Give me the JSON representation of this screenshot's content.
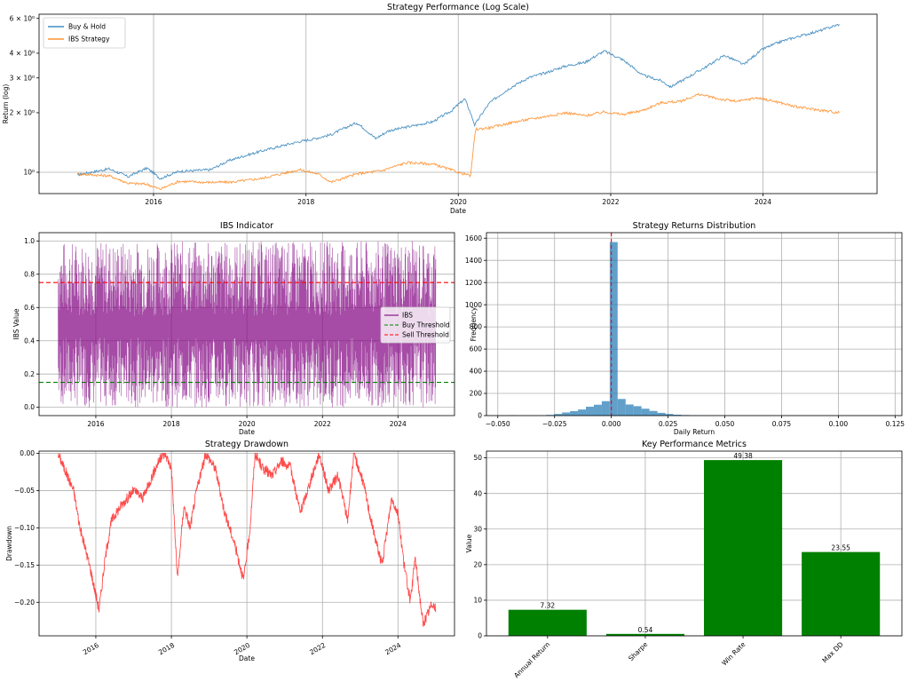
{
  "chart_data": [
    {
      "id": "perf",
      "type": "line",
      "title": "Strategy Performance (Log Scale)",
      "xlabel": "Date",
      "ylabel": "Return (log)",
      "yscale": "log",
      "xlim": [
        "2014-07-01",
        "2025-07-01"
      ],
      "ylim": [
        0.78,
        6.3
      ],
      "xticks": [
        "2016-01-01",
        "2018-01-01",
        "2020-01-01",
        "2022-01-01",
        "2024-01-01"
      ],
      "xtick_labels": [
        "2016",
        "2018",
        "2020",
        "2022",
        "2024"
      ],
      "yticks": [
        1,
        2,
        3,
        4,
        6
      ],
      "ytick_labels": [
        "10⁰",
        "2 × 10⁰",
        "3 × 10⁰",
        "4 × 10⁰",
        "6 × 10⁰"
      ],
      "grid": true,
      "legend": "upper left",
      "series": [
        {
          "name": "Buy & Hold",
          "color": "#1f77b4",
          "points": [
            [
              "2015-01-01",
              0.97
            ],
            [
              "2015-06-01",
              1.04
            ],
            [
              "2015-09-01",
              0.95
            ],
            [
              "2015-12-01",
              1.05
            ],
            [
              "2016-02-01",
              0.93
            ],
            [
              "2016-05-01",
              1.01
            ],
            [
              "2016-10-01",
              1.03
            ],
            [
              "2017-01-01",
              1.15
            ],
            [
              "2017-06-01",
              1.28
            ],
            [
              "2017-12-01",
              1.43
            ],
            [
              "2018-02-01",
              1.47
            ],
            [
              "2018-05-01",
              1.55
            ],
            [
              "2018-09-01",
              1.78
            ],
            [
              "2018-12-01",
              1.48
            ],
            [
              "2019-02-01",
              1.62
            ],
            [
              "2019-06-01",
              1.72
            ],
            [
              "2019-09-01",
              1.8
            ],
            [
              "2019-12-01",
              2.05
            ],
            [
              "2020-02-01",
              2.35
            ],
            [
              "2020-03-20",
              1.73
            ],
            [
              "2020-06-01",
              2.25
            ],
            [
              "2020-09-01",
              2.65
            ],
            [
              "2020-12-01",
              3.0
            ],
            [
              "2021-03-01",
              3.2
            ],
            [
              "2021-06-01",
              3.45
            ],
            [
              "2021-09-01",
              3.6
            ],
            [
              "2021-12-01",
              4.1
            ],
            [
              "2022-03-01",
              3.7
            ],
            [
              "2022-06-01",
              3.1
            ],
            [
              "2022-09-01",
              2.9
            ],
            [
              "2022-10-15",
              2.7
            ],
            [
              "2023-01-01",
              3.0
            ],
            [
              "2023-04-01",
              3.4
            ],
            [
              "2023-07-01",
              3.9
            ],
            [
              "2023-10-01",
              3.5
            ],
            [
              "2024-01-01",
              4.2
            ],
            [
              "2024-04-01",
              4.6
            ],
            [
              "2024-07-01",
              4.9
            ],
            [
              "2024-10-01",
              5.2
            ],
            [
              "2025-01-01",
              5.6
            ]
          ]
        },
        {
          "name": "IBS Strategy",
          "color": "#ff7f0e",
          "points": [
            [
              "2015-01-01",
              0.98
            ],
            [
              "2015-06-01",
              0.96
            ],
            [
              "2015-09-01",
              0.88
            ],
            [
              "2015-12-01",
              0.87
            ],
            [
              "2016-02-01",
              0.82
            ],
            [
              "2016-05-01",
              0.9
            ],
            [
              "2016-09-01",
              0.89
            ],
            [
              "2017-01-01",
              0.89
            ],
            [
              "2017-06-01",
              0.93
            ],
            [
              "2017-12-01",
              1.03
            ],
            [
              "2018-03-01",
              0.98
            ],
            [
              "2018-05-01",
              0.89
            ],
            [
              "2018-09-01",
              0.98
            ],
            [
              "2019-01-01",
              1.02
            ],
            [
              "2019-05-01",
              1.12
            ],
            [
              "2019-09-01",
              1.1
            ],
            [
              "2020-01-01",
              1.0
            ],
            [
              "2020-03-01",
              0.96
            ],
            [
              "2020-03-25",
              1.65
            ],
            [
              "2020-06-01",
              1.68
            ],
            [
              "2020-10-01",
              1.8
            ],
            [
              "2021-03-01",
              1.92
            ],
            [
              "2021-06-01",
              2.0
            ],
            [
              "2021-09-01",
              1.93
            ],
            [
              "2021-12-01",
              2.02
            ],
            [
              "2022-03-01",
              1.96
            ],
            [
              "2022-06-01",
              2.05
            ],
            [
              "2022-09-01",
              2.25
            ],
            [
              "2022-12-01",
              2.28
            ],
            [
              "2023-03-01",
              2.48
            ],
            [
              "2023-06-01",
              2.35
            ],
            [
              "2023-09-01",
              2.28
            ],
            [
              "2023-12-01",
              2.38
            ],
            [
              "2024-03-01",
              2.28
            ],
            [
              "2024-06-01",
              2.15
            ],
            [
              "2024-09-01",
              2.08
            ],
            [
              "2025-01-01",
              2.0
            ]
          ]
        }
      ]
    },
    {
      "id": "ibs",
      "type": "line",
      "title": "IBS Indicator",
      "xlabel": "Date",
      "ylabel": "IBS Value",
      "xlim": [
        "2014-07-01",
        "2025-07-01"
      ],
      "ylim": [
        -0.05,
        1.05
      ],
      "xticks": [
        "2016-01-01",
        "2018-01-01",
        "2020-01-01",
        "2022-01-01",
        "2024-01-01"
      ],
      "xtick_labels": [
        "2016",
        "2018",
        "2020",
        "2022",
        "2024"
      ],
      "yticks": [
        0.0,
        0.2,
        0.4,
        0.6,
        0.8,
        1.0
      ],
      "ytick_labels": [
        "0.0",
        "0.2",
        "0.4",
        "0.6",
        "0.8",
        "1.0"
      ],
      "grid": true,
      "legend": "center right",
      "ibs_range": [
        "2015-01-01",
        "2025-01-01"
      ],
      "series": [
        {
          "name": "IBS",
          "color": "#800080"
        },
        {
          "name": "Buy Threshold",
          "color": "#008000",
          "value": 0.15
        },
        {
          "name": "Sell Threshold",
          "color": "#ff0000",
          "value": 0.75
        }
      ]
    },
    {
      "id": "dist",
      "type": "bar",
      "title": "Strategy Returns Distribution",
      "xlabel": "Daily Return",
      "ylabel": "Frequency",
      "xlim": [
        -0.055,
        0.128
      ],
      "ylim": [
        0,
        1650
      ],
      "xticks": [
        -0.05,
        -0.025,
        0.0,
        0.025,
        0.05,
        0.075,
        0.1,
        0.125
      ],
      "xtick_labels": [
        "−0.050",
        "−0.025",
        "0.000",
        "0.025",
        "0.050",
        "0.075",
        "0.100",
        "0.125"
      ],
      "yticks": [
        0,
        200,
        400,
        600,
        800,
        1000,
        1200,
        1400,
        1600
      ],
      "ytick_labels": [
        "0",
        "200",
        "400",
        "600",
        "800",
        "1000",
        "1200",
        "1400",
        "1600"
      ],
      "grid": true,
      "color": "#1f77b4",
      "vline": 0.0,
      "bins": [
        {
          "x0": -0.045,
          "x1": -0.0415,
          "count": 3
        },
        {
          "x0": -0.035,
          "x1": -0.0315,
          "count": 2
        },
        {
          "x0": -0.0287,
          "x1": -0.0252,
          "count": 6
        },
        {
          "x0": -0.0252,
          "x1": -0.0217,
          "count": 15
        },
        {
          "x0": -0.0217,
          "x1": -0.0182,
          "count": 28
        },
        {
          "x0": -0.0182,
          "x1": -0.0147,
          "count": 40
        },
        {
          "x0": -0.0147,
          "x1": -0.0112,
          "count": 55
        },
        {
          "x0": -0.0112,
          "x1": -0.0077,
          "count": 80
        },
        {
          "x0": -0.0077,
          "x1": -0.0042,
          "count": 98
        },
        {
          "x0": -0.0042,
          "x1": -0.0007,
          "count": 130
        },
        {
          "x0": -0.0007,
          "x1": 0.0028,
          "count": 1565
        },
        {
          "x0": 0.0028,
          "x1": 0.0063,
          "count": 150
        },
        {
          "x0": 0.0063,
          "x1": 0.0098,
          "count": 100
        },
        {
          "x0": 0.0098,
          "x1": 0.0133,
          "count": 85
        },
        {
          "x0": 0.0133,
          "x1": 0.0168,
          "count": 62
        },
        {
          "x0": 0.0168,
          "x1": 0.0203,
          "count": 42
        },
        {
          "x0": 0.0203,
          "x1": 0.0238,
          "count": 25
        },
        {
          "x0": 0.0238,
          "x1": 0.0273,
          "count": 15
        },
        {
          "x0": 0.0273,
          "x1": 0.0308,
          "count": 8
        },
        {
          "x0": 0.0308,
          "x1": 0.0343,
          "count": 5
        },
        {
          "x0": 0.0343,
          "x1": 0.0378,
          "count": 3
        },
        {
          "x0": 0.0378,
          "x1": 0.0413,
          "count": 2
        }
      ]
    },
    {
      "id": "dd",
      "type": "line",
      "title": "Strategy Drawdown",
      "xlabel": "Date",
      "ylabel": "Drawdown",
      "xlim": [
        "2014-07-01",
        "2025-07-01"
      ],
      "ylim": [
        -0.245,
        0.003
      ],
      "xticks": [
        "2016-01-01",
        "2018-01-01",
        "2020-01-01",
        "2022-01-01",
        "2024-01-01"
      ],
      "xtick_labels": [
        "2016",
        "2018",
        "2020",
        "2022",
        "2024"
      ],
      "yticks": [
        0.0,
        -0.05,
        -0.1,
        -0.15,
        -0.2
      ],
      "ytick_labels": [
        "0.00",
        "−0.05",
        "−0.10",
        "−0.15",
        "−0.20"
      ],
      "grid": true,
      "series": [
        {
          "name": "Drawdown",
          "color": "#ff0000",
          "points": [
            [
              "2015-01-01",
              0.0
            ],
            [
              "2015-03-01",
              -0.02
            ],
            [
              "2015-06-01",
              -0.05
            ],
            [
              "2015-08-01",
              -0.1
            ],
            [
              "2015-11-01",
              -0.15
            ],
            [
              "2016-02-01",
              -0.21
            ],
            [
              "2016-04-01",
              -0.14
            ],
            [
              "2016-06-01",
              -0.09
            ],
            [
              "2016-09-01",
              -0.07
            ],
            [
              "2017-01-01",
              -0.05
            ],
            [
              "2017-04-01",
              -0.06
            ],
            [
              "2017-07-01",
              -0.03
            ],
            [
              "2017-09-01",
              -0.01
            ],
            [
              "2017-11-01",
              0.0
            ],
            [
              "2018-01-01",
              -0.02
            ],
            [
              "2018-03-01",
              -0.17
            ],
            [
              "2018-05-01",
              -0.07
            ],
            [
              "2018-07-01",
              -0.1
            ],
            [
              "2018-09-01",
              -0.05
            ],
            [
              "2018-12-01",
              0.0
            ],
            [
              "2019-03-01",
              -0.02
            ],
            [
              "2019-06-01",
              -0.08
            ],
            [
              "2019-09-01",
              -0.12
            ],
            [
              "2019-12-01",
              -0.17
            ],
            [
              "2020-02-01",
              -0.1
            ],
            [
              "2020-03-20",
              0.0
            ],
            [
              "2020-06-01",
              -0.02
            ],
            [
              "2020-09-01",
              -0.03
            ],
            [
              "2020-12-01",
              -0.01
            ],
            [
              "2021-03-01",
              -0.02
            ],
            [
              "2021-06-01",
              -0.08
            ],
            [
              "2021-09-01",
              -0.04
            ],
            [
              "2021-12-01",
              0.0
            ],
            [
              "2022-03-01",
              -0.05
            ],
            [
              "2022-06-01",
              -0.03
            ],
            [
              "2022-09-01",
              -0.09
            ],
            [
              "2022-11-01",
              0.0
            ],
            [
              "2023-02-01",
              -0.04
            ],
            [
              "2023-05-01",
              -0.1
            ],
            [
              "2023-08-01",
              -0.15
            ],
            [
              "2023-11-01",
              -0.06
            ],
            [
              "2024-01-01",
              -0.08
            ],
            [
              "2024-03-01",
              -0.15
            ],
            [
              "2024-05-01",
              -0.2
            ],
            [
              "2024-06-15",
              -0.14
            ],
            [
              "2024-09-01",
              -0.23
            ],
            [
              "2024-12-01",
              -0.2
            ],
            [
              "2025-01-01",
              -0.21
            ]
          ]
        }
      ]
    },
    {
      "id": "metrics",
      "type": "bar",
      "title": "Key Performance Metrics",
      "xlabel": "",
      "ylabel": "Value",
      "ylim": [
        0,
        51.9
      ],
      "yticks": [
        0,
        10,
        20,
        30,
        40,
        50
      ],
      "ytick_labels": [
        "0",
        "10",
        "20",
        "30",
        "40",
        "50"
      ],
      "grid": true,
      "color": "#008000",
      "categories": [
        "Annual Return",
        "Sharpe",
        "Win Rate",
        "Max DD"
      ],
      "values": [
        7.32,
        0.54,
        49.38,
        23.55
      ],
      "value_labels": [
        "7.32",
        "0.54",
        "49.38",
        "23.55"
      ]
    }
  ]
}
